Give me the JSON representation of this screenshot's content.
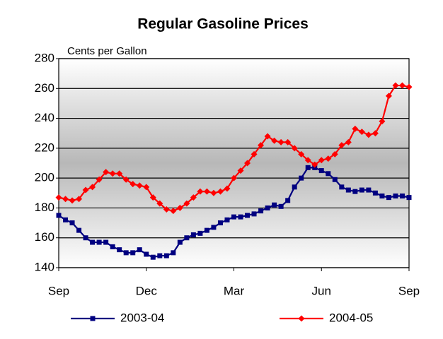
{
  "chart_data": {
    "type": "line",
    "title": "Regular Gasoline Prices",
    "annotation": "Cents per Gallon",
    "categories": [
      "Sep",
      null,
      null,
      null,
      null,
      null,
      null,
      null,
      null,
      null,
      null,
      null,
      null,
      "Dec",
      null,
      null,
      null,
      null,
      null,
      null,
      null,
      null,
      null,
      null,
      null,
      null,
      "Mar",
      null,
      null,
      null,
      null,
      null,
      null,
      null,
      null,
      null,
      null,
      null,
      null,
      "Jun",
      null,
      null,
      null,
      null,
      null,
      null,
      null,
      null,
      null,
      null,
      null,
      null,
      "Sep"
    ],
    "series": [
      {
        "name": "2003-04",
        "color": "#000080",
        "marker": "square",
        "values": [
          175,
          172,
          170,
          165,
          160,
          157,
          157,
          157,
          154,
          152,
          150,
          150,
          152,
          149,
          147,
          148,
          148,
          150,
          157,
          160,
          162,
          163,
          165,
          167,
          170,
          172,
          174,
          174,
          175,
          176,
          178,
          180,
          182,
          181,
          185,
          194,
          200,
          207,
          207,
          205,
          203,
          199,
          194,
          192,
          191,
          192,
          192,
          190,
          188,
          187,
          188,
          188,
          187
        ]
      },
      {
        "name": "2004-05",
        "color": "#ff0000",
        "marker": "diamond",
        "values": [
          187,
          186,
          185,
          186,
          192,
          194,
          199,
          204,
          203,
          203,
          199,
          196,
          195,
          194,
          187,
          183,
          179,
          178,
          180,
          183,
          187,
          191,
          191,
          190,
          191,
          193,
          200,
          205,
          210,
          216,
          222,
          228,
          225,
          224,
          224,
          220,
          216,
          212,
          209,
          212,
          213,
          216,
          222,
          224,
          233,
          231,
          229,
          230,
          238,
          255,
          262,
          262,
          261
        ]
      }
    ],
    "ylim": [
      140,
      280
    ],
    "yticks": [
      140,
      160,
      180,
      200,
      220,
      240,
      260,
      280
    ],
    "grid": true
  }
}
